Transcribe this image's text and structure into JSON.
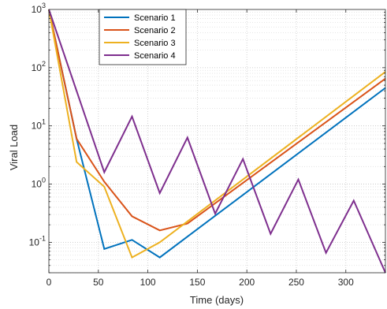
{
  "chart_data": {
    "type": "line",
    "xlabel": "Time (days)",
    "ylabel": "Viral Load",
    "xlim": [
      0,
      340
    ],
    "ylim": [
      0.03,
      1000
    ],
    "yscale": "log",
    "grid": "on (major and minor)",
    "legend_placement": "top-left",
    "x_ticks": [
      0,
      50,
      100,
      150,
      200,
      250,
      300
    ],
    "y_ticks": [
      0.1,
      1,
      10,
      100,
      1000
    ],
    "series": [
      {
        "name": "Scenario 1",
        "color": "#0072BD",
        "x": [
          0,
          28,
          56,
          84,
          112,
          340
        ],
        "y": [
          1000,
          6,
          0.077,
          0.11,
          0.055,
          45
        ]
      },
      {
        "name": "Scenario 2",
        "color": "#D95319",
        "x": [
          0,
          28,
          56,
          84,
          112,
          140,
          340
        ],
        "y": [
          1000,
          6,
          1.1,
          0.28,
          0.16,
          0.21,
          65
        ]
      },
      {
        "name": "Scenario 3",
        "color": "#EDB120",
        "x": [
          0,
          28,
          56,
          84,
          112,
          340
        ],
        "y": [
          1000,
          2.4,
          0.9,
          0.055,
          0.1,
          85
        ]
      },
      {
        "name": "Scenario 4",
        "color": "#7E2F8E",
        "x": [
          0,
          56,
          84,
          112,
          140,
          168,
          196,
          224,
          252,
          280,
          308,
          340
        ],
        "y": [
          1000,
          1.6,
          14.5,
          0.7,
          6.3,
          0.31,
          2.7,
          0.14,
          1.2,
          0.066,
          0.52,
          0.03
        ]
      }
    ]
  }
}
